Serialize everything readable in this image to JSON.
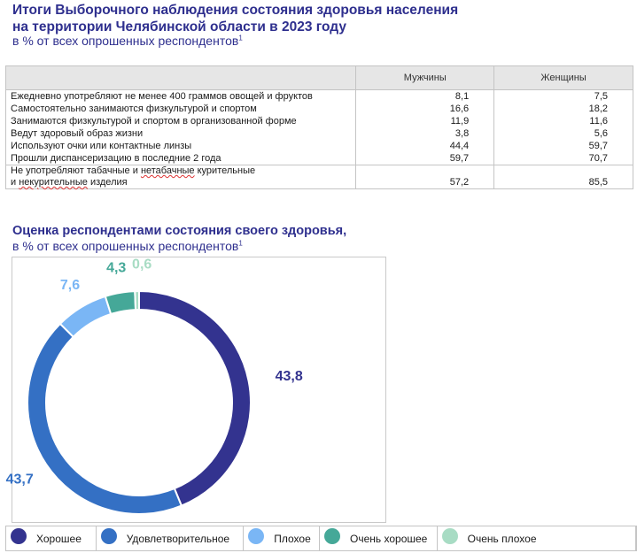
{
  "header": {
    "title_line1": "Итоги Выборочного наблюдения состояния здоровья населения",
    "title_line2": "на территории Челябинской области в 2023 году",
    "subtitle": "в % от всех опрошенных респондентов",
    "footnote_mark": "1"
  },
  "table": {
    "columns": [
      "",
      "Мужчины",
      "Женщины"
    ],
    "rows": [
      {
        "label": "Ежедневно употребляют не менее 400 граммов овощей и фруктов",
        "men": "8,1",
        "women": "7,5"
      },
      {
        "label": "Самостоятельно занимаются физкультурой и спортом",
        "men": "16,6",
        "women": "18,2"
      },
      {
        "label": "Занимаются физкультурой и спортом в организованной форме",
        "men": "11,9",
        "women": "11,6"
      },
      {
        "label": "Ведут здоровый образ жизни",
        "men": "3,8",
        "women": "5,6"
      },
      {
        "label": "Используют очки или контактные линзы",
        "men": "44,4",
        "women": "59,7"
      },
      {
        "label": "Прошли диспансеризацию в последние 2 года",
        "men": "59,7",
        "women": "70,7"
      }
    ],
    "last_row": {
      "label_line1_a": "Не употребляют табачные и ",
      "label_line1_b": "нетабачные",
      "label_line1_c": " курительные",
      "label_line2_a": "и ",
      "label_line2_b": "некурительные",
      "label_line2_c": " изделия",
      "men": "57,2",
      "women": "85,5"
    }
  },
  "chart_section": {
    "title": "Оценка респондентами состояния своего здоровья,",
    "subtitle": "в % от всех опрошенных респондентов",
    "footnote_mark": "1"
  },
  "chart_data": {
    "type": "pie",
    "variant": "donut",
    "title": "Оценка респондентами состояния своего здоровья",
    "unit": "%",
    "categories": [
      "Хорошее",
      "Удовлетворительное",
      "Плохое",
      "Очень хорошее",
      "Очень плохое"
    ],
    "values": [
      43.8,
      43.7,
      7.6,
      4.3,
      0.6
    ],
    "labels": [
      "43,8",
      "43,7",
      "7,6",
      "4,3",
      "0,6"
    ],
    "colors": [
      "#33338f",
      "#3470c4",
      "#7ab6f5",
      "#45a898",
      "#a8dcc4"
    ],
    "legend_position": "bottom"
  }
}
